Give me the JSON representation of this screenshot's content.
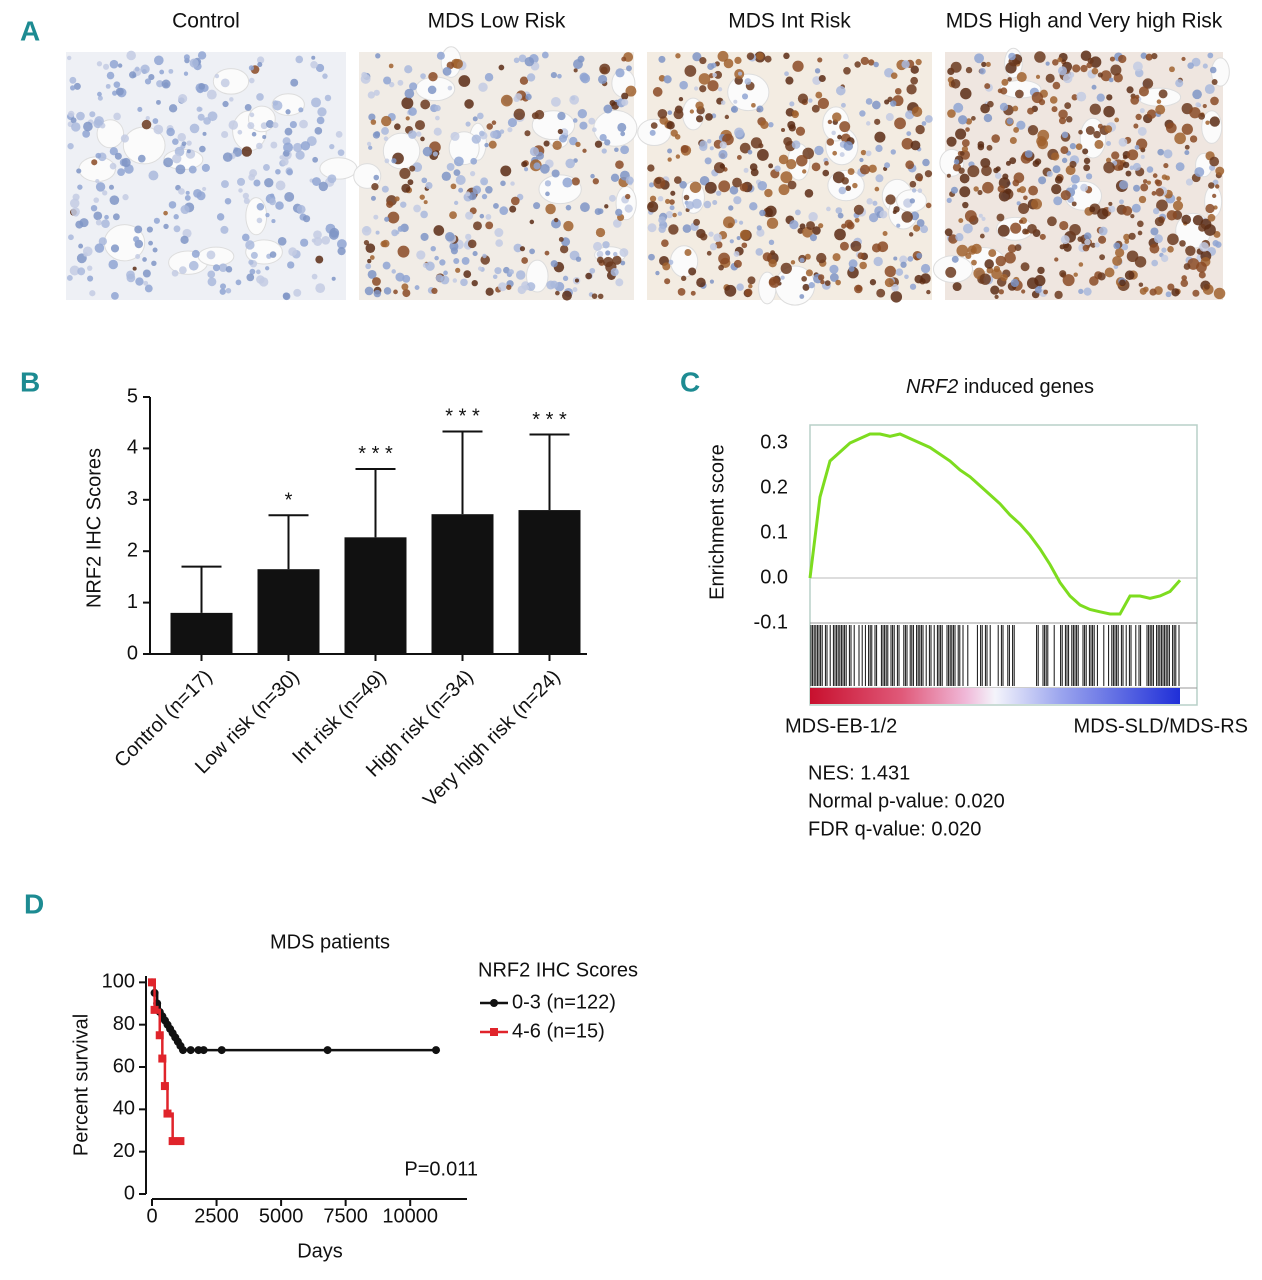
{
  "panel_labels": [
    "A",
    "B",
    "C",
    "D"
  ],
  "micrographs": {
    "titles": [
      "Control",
      "MDS Low Risk",
      "MDS Int Risk",
      "MDS High and Very high Risk"
    ]
  },
  "chart_data": [
    {
      "type": "bar",
      "ylabel": "NRF2 IHC Scores",
      "categories": [
        "Control (n=17)",
        "Low risk (n=30)",
        "Int risk (n=49)",
        "High risk (n=34)",
        "Very high risk (n=24)"
      ],
      "values": [
        0.8,
        1.65,
        2.27,
        2.72,
        2.8
      ],
      "errors": [
        0.9,
        1.05,
        1.33,
        1.61,
        1.47
      ],
      "annotations": [
        null,
        "*",
        "* * *",
        "* * *",
        "* * *"
      ],
      "color": "#111111",
      "ylim": [
        0,
        5
      ],
      "yticks": [
        0,
        1,
        2,
        3,
        4,
        5
      ]
    },
    {
      "type": "gsea",
      "title_italic": "NRF2",
      "title": "induced genes",
      "ylabel": "Enrichment score",
      "values": [
        0.0,
        0.18,
        0.26,
        0.28,
        0.3,
        0.31,
        0.32,
        0.32,
        0.315,
        0.32,
        0.31,
        0.3,
        0.29,
        0.275,
        0.26,
        0.24,
        0.225,
        0.205,
        0.185,
        0.165,
        0.14,
        0.12,
        0.095,
        0.065,
        0.03,
        -0.01,
        -0.04,
        -0.06,
        -0.07,
        -0.075,
        -0.08,
        -0.08,
        -0.04,
        -0.04,
        -0.045,
        -0.04,
        -0.03,
        -0.005
      ],
      "color": "#7ddc1f",
      "ylim": [
        -0.1,
        0.34
      ],
      "yticks": [
        0.3,
        0.2,
        0.1,
        {
          "value": 0,
          "label": "0.0"
        },
        -0.1
      ],
      "phenotype_labels": [
        "MDS-EB-1/2",
        "MDS-SLD/MDS-RS"
      ],
      "phenotype_colors": [
        "#e0242b",
        "#111111"
      ],
      "stats": [
        "NES: 1.431",
        "Normal p-value: 0.020",
        "FDR q-value: 0.020"
      ]
    },
    {
      "type": "survival",
      "title": "MDS patients",
      "xlabel": "Days",
      "ylabel": "Percent survival",
      "xlim": [
        0,
        12200
      ],
      "xticks": [
        0,
        2500,
        5000,
        7500,
        10000
      ],
      "ylim": [
        0,
        103
      ],
      "yticks": [
        0,
        20,
        40,
        60,
        80,
        100
      ],
      "legend_title": "NRF2 IHC Scores",
      "series": [
        {
          "name": "0-3 (n=122)",
          "color": "#111111",
          "marker": "circle",
          "x": [
            0,
            100,
            200,
            300,
            400,
            500,
            600,
            700,
            800,
            900,
            1000,
            1100,
            1200,
            1500,
            1800,
            2000,
            2700,
            6800,
            11000
          ],
          "values": [
            100,
            95,
            90,
            86,
            84,
            82,
            80,
            78,
            76,
            74,
            72,
            70,
            68,
            68,
            68,
            68,
            68,
            68,
            68
          ]
        },
        {
          "name": "4-6 (n=15)",
          "color": "#e0242b",
          "marker": "square",
          "x": [
            0,
            100,
            300,
            400,
            500,
            600,
            800,
            1100
          ],
          "values": [
            100,
            87,
            75,
            64,
            51,
            38,
            25,
            25
          ]
        }
      ],
      "annotation": "P=0.011"
    }
  ]
}
